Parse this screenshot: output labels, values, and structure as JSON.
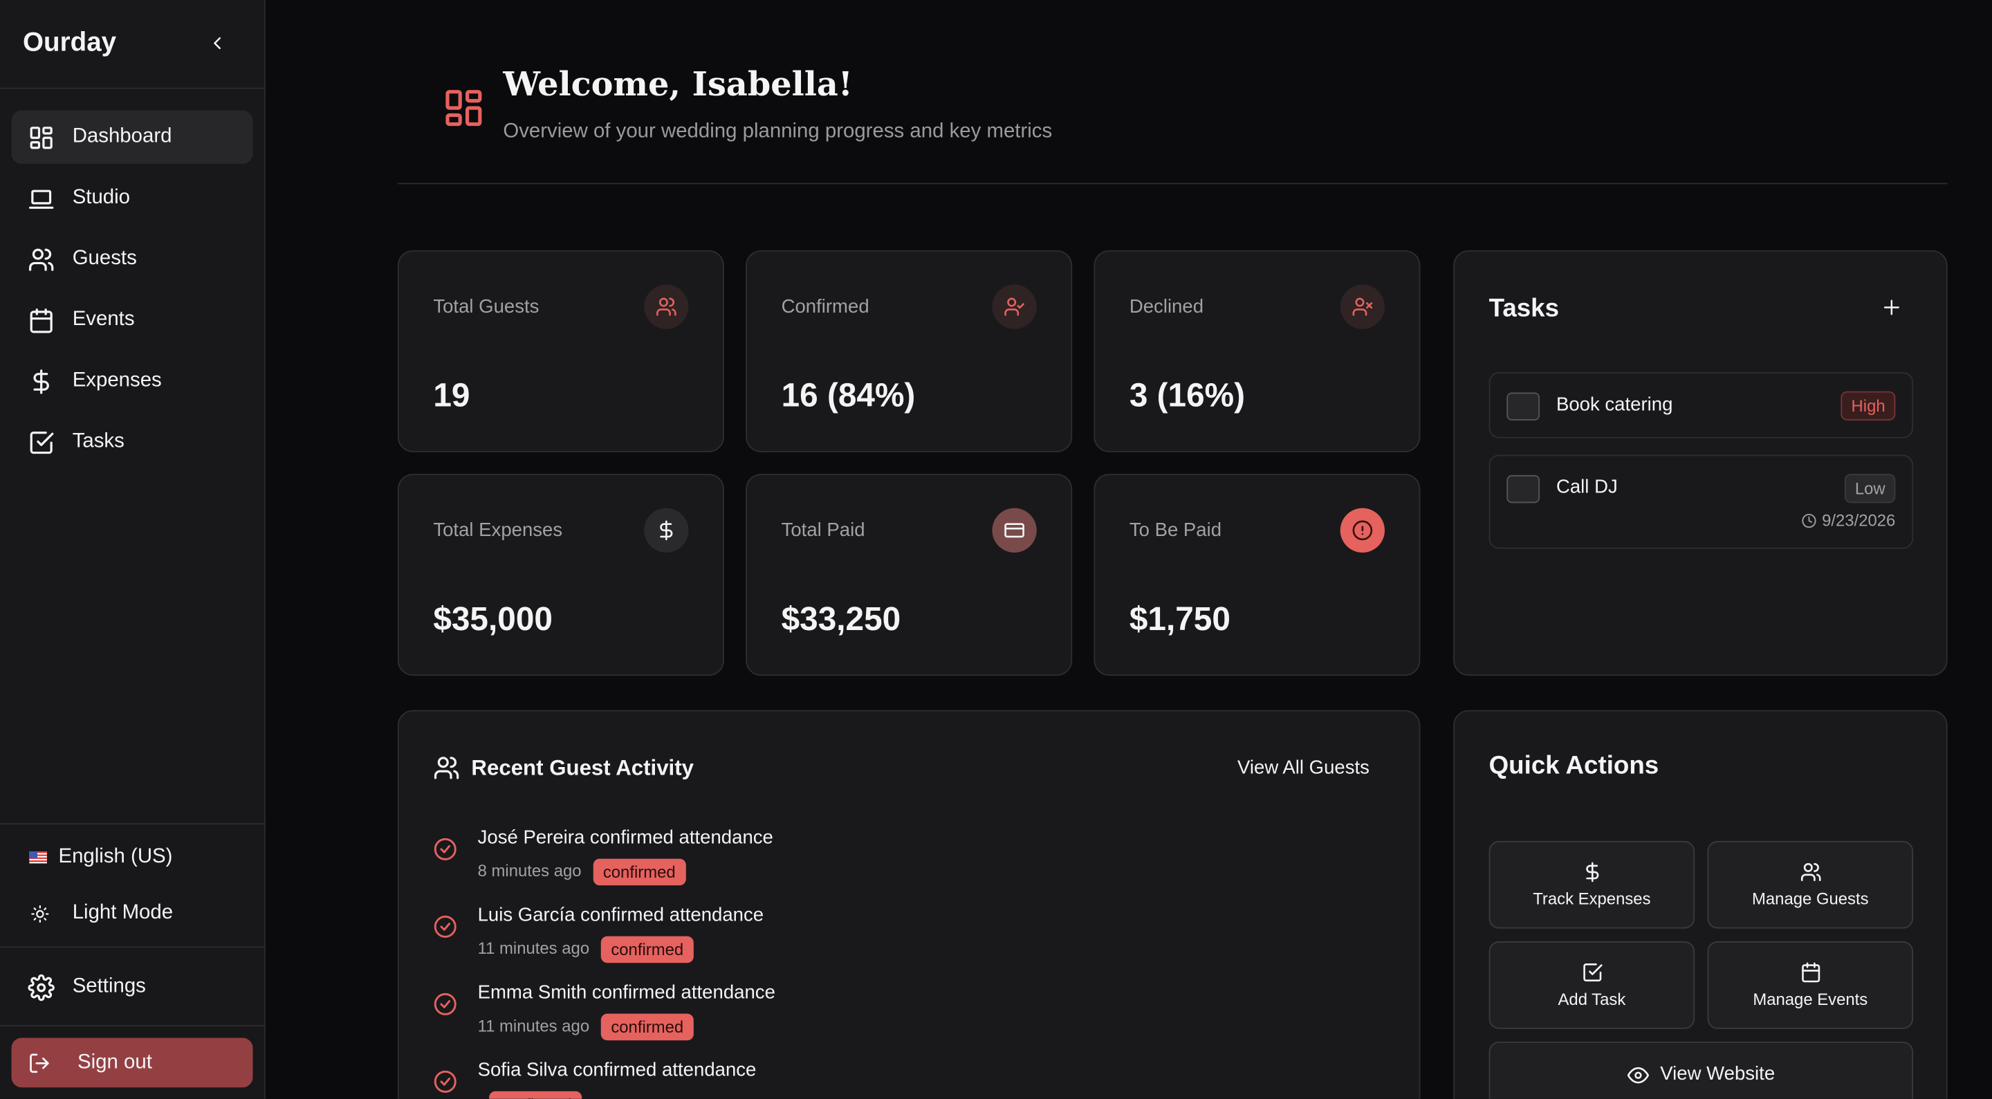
{
  "sidebar": {
    "brand": "Ourday",
    "nav": [
      "Dashboard",
      "Studio",
      "Guests",
      "Events",
      "Expenses",
      "Tasks"
    ],
    "language": "English (US)",
    "theme": "Light Mode",
    "settings": "Settings",
    "sign_out": "Sign out"
  },
  "header": {
    "title": "Welcome, Isabella!",
    "subtitle": "Overview of your wedding planning progress and key metrics"
  },
  "stats": [
    {
      "label": "Total Guests",
      "value": "19"
    },
    {
      "label": "Confirmed",
      "value": "16 (84%)"
    },
    {
      "label": "Declined",
      "value": "3 (16%)"
    },
    {
      "label": "Total Expenses",
      "value": "$35,000"
    },
    {
      "label": "Total Paid",
      "value": "$33,250"
    },
    {
      "label": "To Be Paid",
      "value": "$1,750"
    }
  ],
  "tasks": {
    "title": "Tasks",
    "items": [
      {
        "name": "Book catering",
        "priority": "High"
      },
      {
        "name": "Call DJ",
        "priority": "Low",
        "date": "9/23/2026"
      }
    ]
  },
  "activity": {
    "title": "Recent Guest Activity",
    "link": "View All Guests",
    "items": [
      {
        "text": "José Pereira confirmed attendance",
        "time": "8 minutes ago",
        "status": "confirmed"
      },
      {
        "text": "Luis García confirmed attendance",
        "time": "11 minutes ago",
        "status": "confirmed"
      },
      {
        "text": "Emma Smith confirmed attendance",
        "time": "11 minutes ago",
        "status": "confirmed"
      },
      {
        "text": "Sofia Silva confirmed attendance",
        "status": "confirmed"
      }
    ]
  },
  "quick_actions": {
    "title": "Quick Actions",
    "actions": [
      "Track Expenses",
      "Manage Guests",
      "Add Task",
      "Manage Events"
    ],
    "website": "View Website"
  }
}
